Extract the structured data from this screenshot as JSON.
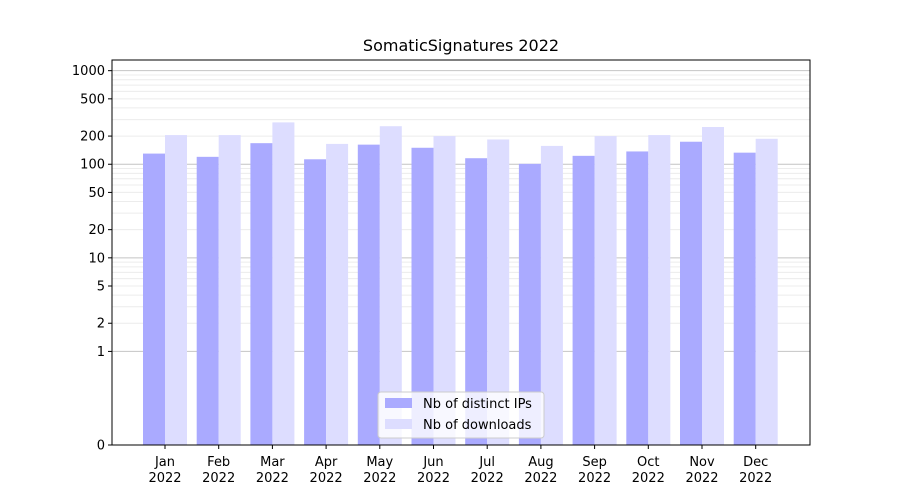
{
  "chart_data": {
    "type": "bar",
    "title": "SomaticSignatures 2022",
    "xlabel": "",
    "ylabel": "",
    "y_scale": "symlog",
    "ylim": [
      0,
      1300
    ],
    "grid": true,
    "legend_position": "bottom-center",
    "categories": [
      [
        "Jan",
        "2022"
      ],
      [
        "Feb",
        "2022"
      ],
      [
        "Mar",
        "2022"
      ],
      [
        "Apr",
        "2022"
      ],
      [
        "May",
        "2022"
      ],
      [
        "Jun",
        "2022"
      ],
      [
        "Jul",
        "2022"
      ],
      [
        "Aug",
        "2022"
      ],
      [
        "Sep",
        "2022"
      ],
      [
        "Oct",
        "2022"
      ],
      [
        "Nov",
        "2022"
      ],
      [
        "Dec",
        "2022"
      ]
    ],
    "y_ticks": [
      {
        "value": 0,
        "label": "0"
      },
      {
        "value": 1,
        "label": "1"
      },
      {
        "value": 2,
        "label": "2"
      },
      {
        "value": 5,
        "label": "5"
      },
      {
        "value": 10,
        "label": "10"
      },
      {
        "value": 20,
        "label": "20"
      },
      {
        "value": 50,
        "label": "50"
      },
      {
        "value": 100,
        "label": "100"
      },
      {
        "value": 200,
        "label": "200"
      },
      {
        "value": 500,
        "label": "500"
      },
      {
        "value": 1000,
        "label": "1000"
      }
    ],
    "series": [
      {
        "name": "Nb of distinct IPs",
        "color": "#aaaaff",
        "values": [
          130,
          120,
          168,
          113,
          162,
          150,
          116,
          101,
          123,
          137,
          174,
          133
        ]
      },
      {
        "name": "Nb of downloads",
        "color": "#ddddff",
        "values": [
          205,
          205,
          280,
          165,
          255,
          200,
          184,
          157,
          200,
          205,
          250,
          187
        ]
      }
    ]
  }
}
